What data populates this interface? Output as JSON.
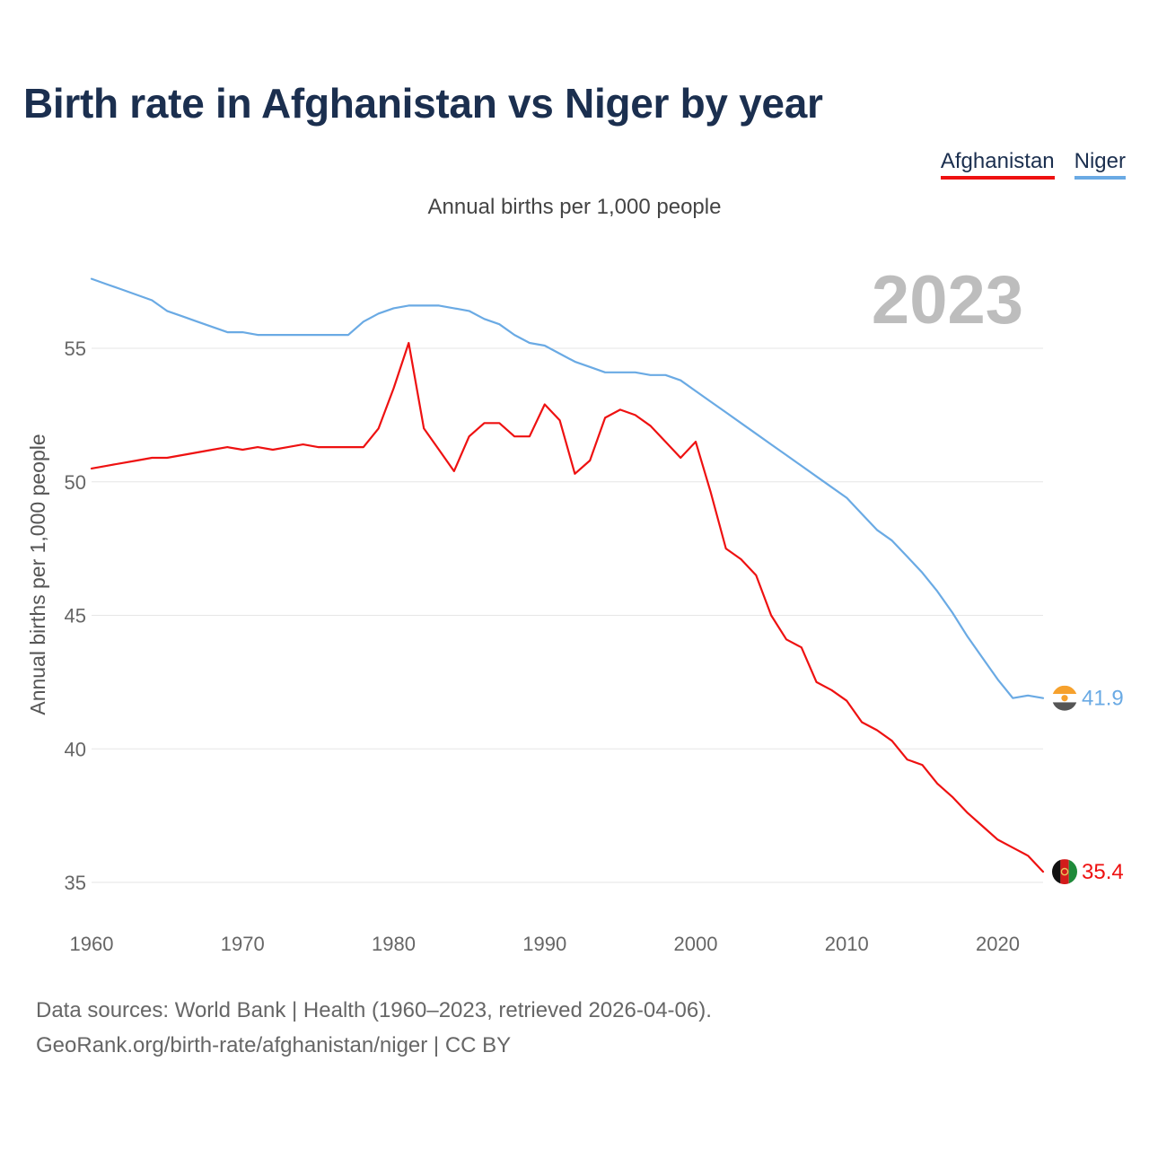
{
  "title": "Birth rate in Afghanistan vs Niger by year",
  "subtitle": "Annual births per 1,000 people",
  "year_label": "2023",
  "legend": [
    {
      "name": "Afghanistan",
      "color": "#ee1111"
    },
    {
      "name": "Niger",
      "color": "#6aaae4"
    }
  ],
  "source": {
    "line1": "Data sources: World Bank | Health (1960–2023, retrieved 2026-04-06).",
    "line2": "GeoRank.org/birth-rate/afghanistan/niger | CC BY"
  },
  "chart_data": {
    "type": "line",
    "title": "Birth rate in Afghanistan vs Niger by year",
    "subtitle": "Annual births per 1,000 people",
    "xlabel": "",
    "ylabel": "Annual births per 1,000 people",
    "xlim": [
      1960,
      2023
    ],
    "ylim": [
      35,
      57.7
    ],
    "grid": true,
    "x_ticks": [
      1960,
      1970,
      1980,
      1990,
      2000,
      2010,
      2020
    ],
    "y_ticks": [
      35,
      40,
      45,
      50,
      55
    ],
    "x": [
      1960,
      1961,
      1962,
      1963,
      1964,
      1965,
      1966,
      1967,
      1968,
      1969,
      1970,
      1971,
      1972,
      1973,
      1974,
      1975,
      1976,
      1977,
      1978,
      1979,
      1980,
      1981,
      1982,
      1983,
      1984,
      1985,
      1986,
      1987,
      1988,
      1989,
      1990,
      1991,
      1992,
      1993,
      1994,
      1995,
      1996,
      1997,
      1998,
      1999,
      2000,
      2001,
      2002,
      2003,
      2004,
      2005,
      2006,
      2007,
      2008,
      2009,
      2010,
      2011,
      2012,
      2013,
      2014,
      2015,
      2016,
      2017,
      2018,
      2019,
      2020,
      2021,
      2022,
      2023
    ],
    "series": [
      {
        "name": "Afghanistan",
        "color": "#ee1111",
        "end_label": "35.4",
        "values": [
          50.5,
          50.6,
          50.7,
          50.8,
          50.9,
          50.9,
          51.0,
          51.1,
          51.2,
          51.3,
          51.2,
          51.3,
          51.2,
          51.3,
          51.4,
          51.3,
          51.3,
          51.3,
          51.3,
          52.0,
          53.5,
          55.2,
          52.0,
          51.2,
          50.4,
          51.7,
          52.2,
          52.2,
          51.7,
          51.7,
          52.9,
          52.3,
          50.3,
          50.8,
          52.4,
          52.7,
          52.5,
          52.1,
          51.5,
          50.9,
          51.5,
          49.6,
          47.5,
          47.1,
          46.5,
          45.0,
          44.1,
          43.8,
          42.5,
          42.2,
          41.8,
          41.0,
          40.7,
          40.3,
          39.6,
          39.4,
          38.7,
          38.2,
          37.6,
          37.1,
          36.6,
          36.3,
          36.0,
          35.4
        ]
      },
      {
        "name": "Niger",
        "color": "#6aaae4",
        "end_label": "41.9",
        "values": [
          57.6,
          57.4,
          57.2,
          57.0,
          56.8,
          56.4,
          56.2,
          56.0,
          55.8,
          55.6,
          55.6,
          55.5,
          55.5,
          55.5,
          55.5,
          55.5,
          55.5,
          55.5,
          56.0,
          56.3,
          56.5,
          56.6,
          56.6,
          56.6,
          56.5,
          56.4,
          56.1,
          55.9,
          55.5,
          55.2,
          55.1,
          54.8,
          54.5,
          54.3,
          54.1,
          54.1,
          54.1,
          54.0,
          54.0,
          53.8,
          53.4,
          53.0,
          52.6,
          52.2,
          51.8,
          51.4,
          51.0,
          50.6,
          50.2,
          49.8,
          49.4,
          48.8,
          48.2,
          47.8,
          47.2,
          46.6,
          45.9,
          45.1,
          44.2,
          43.4,
          42.6,
          41.9,
          42.0,
          41.9
        ]
      }
    ]
  }
}
